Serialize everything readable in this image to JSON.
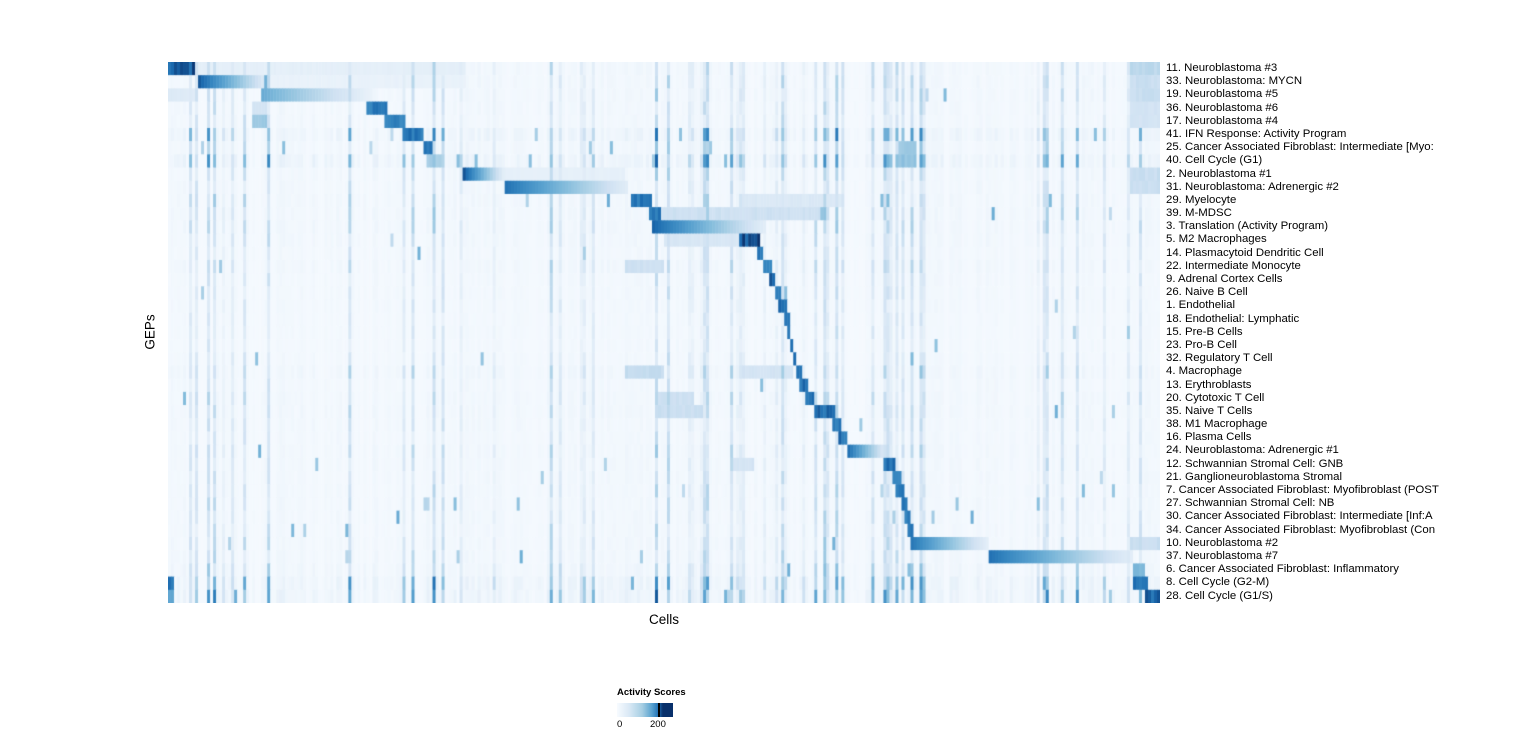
{
  "legend": {
    "title": "Activity Scores",
    "tick_min": "0",
    "tick_max": "200"
  },
  "chart_data": {
    "type": "heatmap",
    "title": "",
    "xlabel": "Cells",
    "ylabel": "GEPs",
    "value_range": [
      0,
      200
    ],
    "colormap": "Blues",
    "colormap_stops": [
      [
        0.0,
        "#f7fbff"
      ],
      [
        0.13,
        "#e3eef8"
      ],
      [
        0.26,
        "#cfe1f2"
      ],
      [
        0.39,
        "#abd0e6"
      ],
      [
        0.52,
        "#82bbdb"
      ],
      [
        0.65,
        "#59a1cf"
      ],
      [
        0.78,
        "#3787c0"
      ],
      [
        0.9,
        "#1b6aaf"
      ],
      [
        1.0,
        "#08306b"
      ]
    ],
    "legend_position": "bottom",
    "grid": false,
    "streak_regions": [
      [
        0.02,
        0.09,
        0.22
      ],
      [
        0.23,
        0.3,
        0.28
      ],
      [
        0.45,
        0.55,
        0.3
      ],
      [
        0.56,
        0.7,
        0.3
      ],
      [
        0.72,
        0.77,
        0.3
      ],
      [
        0.86,
        0.92,
        0.2
      ],
      [
        0.93,
        1.0,
        0.28
      ]
    ],
    "rows": [
      {
        "label": "11. Neuroblastoma #3",
        "noise": 0.45,
        "blocks": [
          [
            0.0,
            0.028,
            1.0,
            "none"
          ],
          [
            0.028,
            0.3,
            0.13,
            "none"
          ],
          [
            0.97,
            1.0,
            0.35,
            "none"
          ]
        ]
      },
      {
        "label": "33. Neuroblastoma: MYCN",
        "noise": 0.45,
        "blocks": [
          [
            0.03,
            0.1,
            0.95,
            "right"
          ],
          [
            0.1,
            0.3,
            0.1,
            "none"
          ],
          [
            0.97,
            1.0,
            0.3,
            "none"
          ]
        ]
      },
      {
        "label": "19. Neuroblastoma #5",
        "noise": 0.45,
        "blocks": [
          [
            0.095,
            0.205,
            0.6,
            "right"
          ],
          [
            0.0,
            0.028,
            0.18,
            "none"
          ],
          [
            0.97,
            1.0,
            0.3,
            "none"
          ]
        ]
      },
      {
        "label": "36. Neuroblastoma #6",
        "noise": 0.4,
        "blocks": [
          [
            0.2,
            0.222,
            0.9,
            "none"
          ],
          [
            0.085,
            0.1,
            0.25,
            "none"
          ],
          [
            0.97,
            1.0,
            0.25,
            "none"
          ]
        ]
      },
      {
        "label": "17. Neuroblastoma #4",
        "noise": 0.4,
        "blocks": [
          [
            0.085,
            0.1,
            0.45,
            "none"
          ],
          [
            0.218,
            0.238,
            0.85,
            "none"
          ],
          [
            0.97,
            1.0,
            0.25,
            "none"
          ]
        ]
      },
      {
        "label": "41. IFN Response: Activity Program",
        "noise": 0.9,
        "blocks": [
          [
            0.235,
            0.258,
            0.92,
            "none"
          ]
        ]
      },
      {
        "label": "25. Cancer Associated Fibroblast: Intermediate [Myo:",
        "noise": 0.5,
        "blocks": [
          [
            0.258,
            0.268,
            0.88,
            "none"
          ],
          [
            0.735,
            0.755,
            0.45,
            "none"
          ]
        ]
      },
      {
        "label": "40. Cell Cycle (G1)",
        "noise": 1.0,
        "blocks": [
          [
            0.262,
            0.275,
            0.45,
            "none"
          ],
          [
            0.735,
            0.755,
            0.5,
            "none"
          ]
        ]
      },
      {
        "label": "2. Neuroblastoma #1",
        "noise": 0.45,
        "blocks": [
          [
            0.298,
            0.338,
            0.95,
            "right"
          ],
          [
            0.338,
            0.46,
            0.12,
            "none"
          ],
          [
            0.97,
            1.0,
            0.3,
            "none"
          ]
        ]
      },
      {
        "label": "31. Neuroblastoma: Adrenergic #2",
        "noise": 0.45,
        "blocks": [
          [
            0.338,
            0.465,
            0.88,
            "right"
          ],
          [
            0.97,
            1.0,
            0.3,
            "none"
          ]
        ]
      },
      {
        "label": "29. Myelocyte",
        "noise": 0.5,
        "blocks": [
          [
            0.468,
            0.488,
            0.92,
            "none"
          ],
          [
            0.58,
            0.68,
            0.2,
            "none"
          ]
        ]
      },
      {
        "label": "39. M-MDSC",
        "noise": 0.5,
        "blocks": [
          [
            0.484,
            0.496,
            0.9,
            "none"
          ],
          [
            0.496,
            0.66,
            0.28,
            "none"
          ]
        ]
      },
      {
        "label": "3. Translation (Activity Program)",
        "noise": 0.5,
        "blocks": [
          [
            0.488,
            0.602,
            0.92,
            "right"
          ]
        ]
      },
      {
        "label": "5. M2 Macrophages",
        "noise": 0.45,
        "blocks": [
          [
            0.575,
            0.596,
            1.0,
            "none"
          ],
          [
            0.5,
            0.575,
            0.22,
            "none"
          ]
        ]
      },
      {
        "label": "14. Plasmacytoid Dendritic Cell",
        "noise": 0.35,
        "blocks": [
          [
            0.594,
            0.601,
            0.92,
            "none"
          ]
        ]
      },
      {
        "label": "22. Intermediate Monocyte",
        "noise": 0.45,
        "blocks": [
          [
            0.6,
            0.608,
            0.9,
            "none"
          ],
          [
            0.46,
            0.5,
            0.28,
            "none"
          ]
        ]
      },
      {
        "label": "9. Adrenal Cortex Cells",
        "noise": 0.35,
        "blocks": [
          [
            0.606,
            0.613,
            0.95,
            "none"
          ]
        ]
      },
      {
        "label": "26. Naive B Cell",
        "noise": 0.35,
        "blocks": [
          [
            0.612,
            0.618,
            0.92,
            "none"
          ]
        ]
      },
      {
        "label": "1. Endothelial",
        "noise": 0.35,
        "blocks": [
          [
            0.616,
            0.623,
            0.95,
            "none"
          ]
        ]
      },
      {
        "label": "18. Endothelial: Lymphatic",
        "noise": 0.3,
        "blocks": [
          [
            0.621,
            0.626,
            0.9,
            "none"
          ]
        ]
      },
      {
        "label": "15. Pre-B Cells",
        "noise": 0.3,
        "blocks": [
          [
            0.624,
            0.628,
            0.9,
            "none"
          ]
        ]
      },
      {
        "label": "23. Pro-B Cell",
        "noise": 0.3,
        "blocks": [
          [
            0.627,
            0.631,
            0.9,
            "none"
          ]
        ]
      },
      {
        "label": "32. Regulatory T Cell",
        "noise": 0.35,
        "blocks": [
          [
            0.629,
            0.634,
            0.92,
            "none"
          ]
        ]
      },
      {
        "label": "4. Macrophage",
        "noise": 0.55,
        "blocks": [
          [
            0.632,
            0.639,
            0.95,
            "none"
          ],
          [
            0.46,
            0.5,
            0.32,
            "none"
          ],
          [
            0.58,
            0.63,
            0.25,
            "none"
          ]
        ]
      },
      {
        "label": "13. Erythroblasts",
        "noise": 0.35,
        "blocks": [
          [
            0.637,
            0.644,
            0.92,
            "none"
          ]
        ]
      },
      {
        "label": "20. Cytotoxic T Cell",
        "noise": 0.45,
        "blocks": [
          [
            0.642,
            0.653,
            0.92,
            "none"
          ],
          [
            0.49,
            0.53,
            0.28,
            "none"
          ]
        ]
      },
      {
        "label": "35. Naive T Cells",
        "noise": 0.45,
        "blocks": [
          [
            0.651,
            0.673,
            0.95,
            "none"
          ],
          [
            0.49,
            0.54,
            0.3,
            "none"
          ]
        ]
      },
      {
        "label": "38. M1 Macrophage",
        "noise": 0.4,
        "blocks": [
          [
            0.671,
            0.679,
            0.92,
            "none"
          ]
        ]
      },
      {
        "label": "16. Plasma Cells",
        "noise": 0.35,
        "blocks": [
          [
            0.677,
            0.685,
            0.92,
            "none"
          ]
        ]
      },
      {
        "label": "24. Neuroblastoma: Adrenergic #1",
        "noise": 0.45,
        "blocks": [
          [
            0.686,
            0.724,
            0.88,
            "right"
          ]
        ]
      },
      {
        "label": "12. Schwannian Stromal Cell: GNB",
        "noise": 0.4,
        "blocks": [
          [
            0.722,
            0.733,
            0.95,
            "none"
          ],
          [
            0.57,
            0.59,
            0.25,
            "none"
          ]
        ]
      },
      {
        "label": "21. Ganglioneuroblastoma Stromal",
        "noise": 0.4,
        "blocks": [
          [
            0.729,
            0.738,
            0.9,
            "none"
          ]
        ]
      },
      {
        "label": "7. Cancer Associated Fibroblast: Myofibroblast (POST",
        "noise": 0.4,
        "blocks": [
          [
            0.734,
            0.742,
            0.92,
            "none"
          ]
        ]
      },
      {
        "label": "27. Schwannian Stromal Cell: NB",
        "noise": 0.4,
        "blocks": [
          [
            0.739,
            0.746,
            0.95,
            "none"
          ],
          [
            0.258,
            0.265,
            0.4,
            "none"
          ]
        ]
      },
      {
        "label": "30. Cancer Associated Fibroblast: Intermediate [Inf:A",
        "noise": 0.4,
        "blocks": [
          [
            0.743,
            0.749,
            0.9,
            "none"
          ]
        ]
      },
      {
        "label": "34. Cancer Associated Fibroblast: Myofibroblast (Con",
        "noise": 0.4,
        "blocks": [
          [
            0.746,
            0.753,
            0.9,
            "none"
          ]
        ]
      },
      {
        "label": "10. Neuroblastoma #2",
        "noise": 0.45,
        "blocks": [
          [
            0.749,
            0.826,
            0.85,
            "right"
          ],
          [
            0.97,
            1.0,
            0.3,
            "none"
          ]
        ]
      },
      {
        "label": "37. Neuroblastoma #7",
        "noise": 0.45,
        "blocks": [
          [
            0.826,
            0.972,
            0.88,
            "right"
          ]
        ]
      },
      {
        "label": "6. Cancer Associated Fibroblast: Inflammatory",
        "noise": 0.6,
        "blocks": [
          [
            0.744,
            0.753,
            0.5,
            "none"
          ],
          [
            0.972,
            0.986,
            0.55,
            "none"
          ]
        ]
      },
      {
        "label": "8. Cell Cycle (G2-M)",
        "noise": 1.0,
        "blocks": [
          [
            0.0,
            0.006,
            0.92,
            "none"
          ],
          [
            0.974,
            0.988,
            0.95,
            "none"
          ]
        ]
      },
      {
        "label": "28. Cell Cycle (G1/S)",
        "noise": 1.0,
        "blocks": [
          [
            0.0,
            0.006,
            0.7,
            "none"
          ],
          [
            0.986,
            1.0,
            0.95,
            "none"
          ]
        ]
      }
    ]
  }
}
